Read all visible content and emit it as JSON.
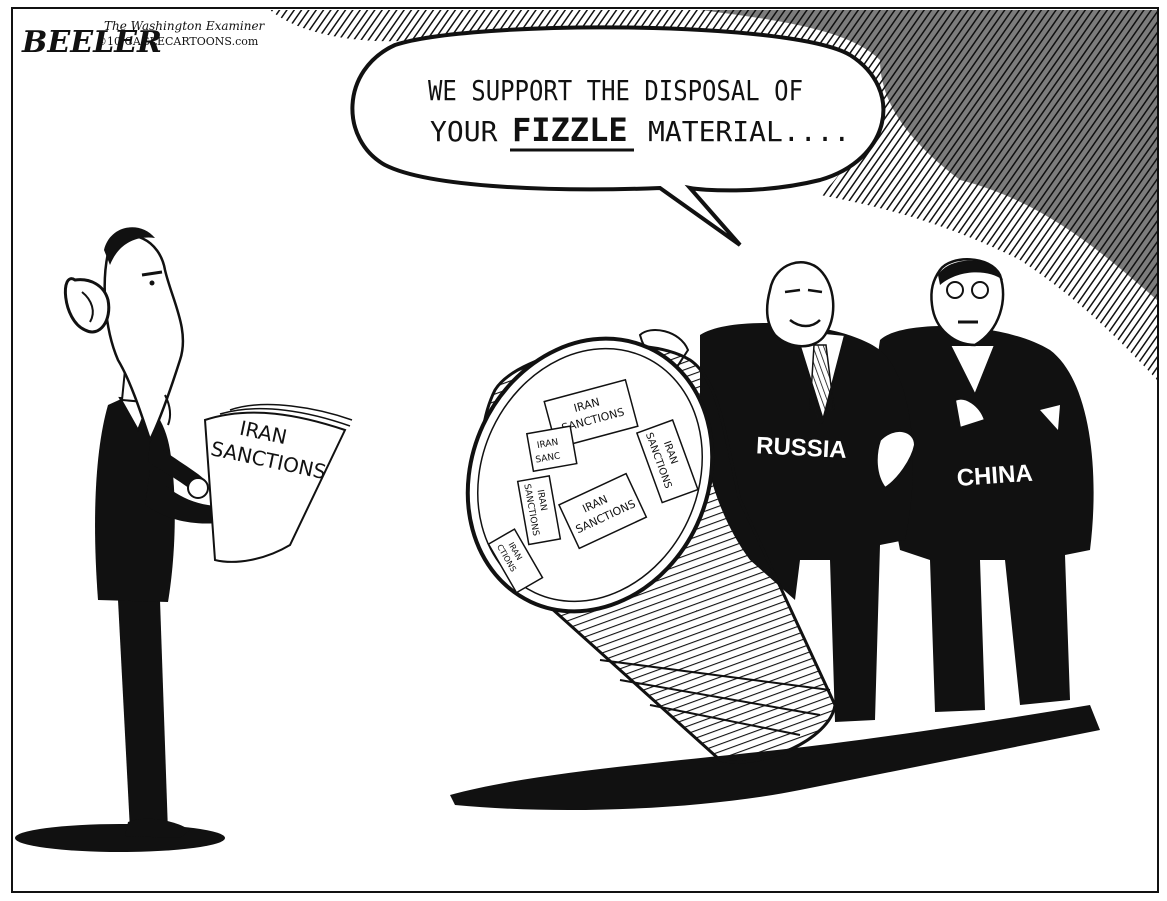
{
  "cartoon": {
    "signature": "BEELER",
    "credit_line_1": "The Washington Examiner",
    "credit_line_2": "©10 CAGLECARTOONS.com",
    "speech_line_1": "WE SUPPORT THE DISPOSAL OF",
    "speech_line_2_a": "YOUR",
    "speech_line_2_emphasis": "FIZZLE",
    "speech_line_2_b": "MATERIAL....",
    "held_paper_line_1": "IRAN",
    "held_paper_line_2": "SANCTIONS",
    "russia_label": "RUSSIA",
    "china_label": "CHINA",
    "bin_papers": [
      {
        "line1": "IRAN",
        "line2": "SANCTIONS"
      },
      {
        "line1": "IRAN",
        "line2": "SANCTIONS"
      },
      {
        "line1": "IRAN",
        "line2": "SANCTIONS"
      },
      {
        "line1": "IRAN",
        "line2": "SANC"
      },
      {
        "line1": "IRAN",
        "line2": "SANCTIONS"
      },
      {
        "line1": "IRAN",
        "line2": "CTIONS"
      }
    ]
  }
}
